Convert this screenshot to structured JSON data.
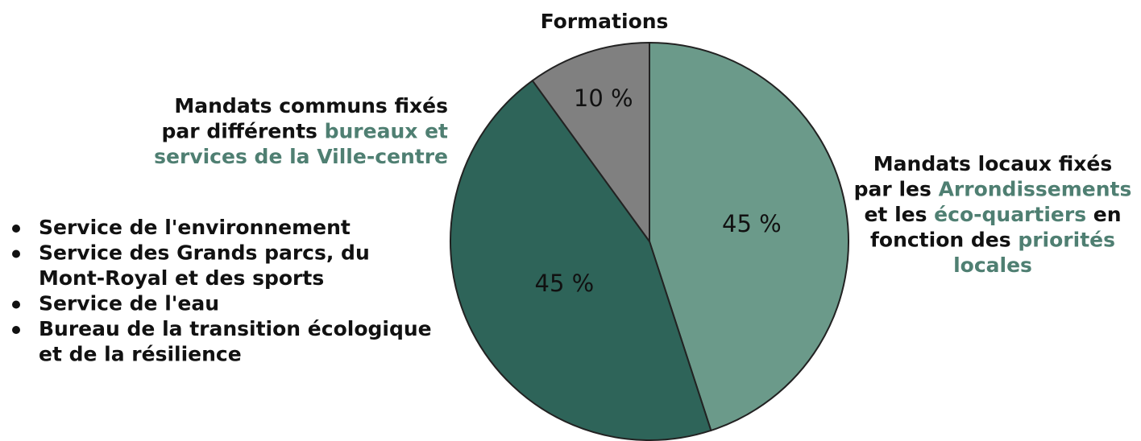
{
  "chart_data": {
    "type": "pie",
    "values": [
      45,
      45,
      10
    ],
    "value_labels": [
      "45 %",
      "45 %",
      "10 %"
    ],
    "colors": [
      "#6b9a8a",
      "#2e6459",
      "#808080"
    ],
    "highlight_color": "#4f7f72",
    "slice_labels": [
      {
        "lines": [
          [
            {
              "text": "Mandats locaux fixés"
            }
          ],
          [
            {
              "text": "par les "
            },
            {
              "text": "Arrondissements",
              "highlight": true
            }
          ],
          [
            {
              "text": "et les "
            },
            {
              "text": "éco-quartiers",
              "highlight": true
            },
            {
              "text": " en"
            }
          ],
          [
            {
              "text": "fonction des "
            },
            {
              "text": "priorités",
              "highlight": true
            }
          ],
          [
            {
              "text": "locales",
              "highlight": true
            }
          ]
        ]
      },
      {
        "lines": [
          [
            {
              "text": "Mandats communs fixés"
            }
          ],
          [
            {
              "text": "par différents "
            },
            {
              "text": "bureaux et",
              "highlight": true
            }
          ],
          [
            {
              "text": "services de la Ville-centre",
              "highlight": true
            }
          ]
        ],
        "bullets": [
          [
            "Service de l'environnement"
          ],
          [
            "Service des Grands parcs, du",
            "Mont-Royal et des sports"
          ],
          [
            "Service de l'eau"
          ],
          [
            "Bureau de la transition écologique",
            "et de la résilience"
          ]
        ]
      },
      {
        "lines": [
          [
            {
              "text": "Formations"
            }
          ]
        ]
      }
    ]
  }
}
